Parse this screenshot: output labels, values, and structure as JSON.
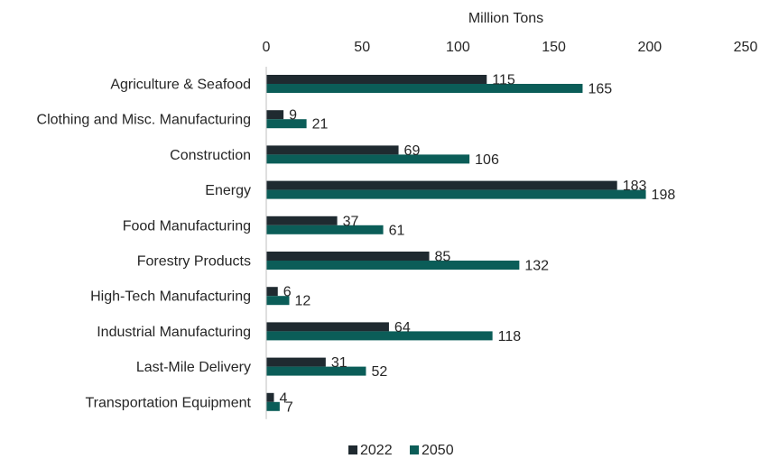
{
  "chart_data": {
    "type": "bar",
    "orientation": "horizontal",
    "xlabel": "Million Tons",
    "xlim": [
      0,
      250
    ],
    "xticks": [
      0,
      50,
      100,
      150,
      200,
      250
    ],
    "grid": false,
    "legend_position": "bottom",
    "categories": [
      "Agriculture & Seafood",
      "Clothing and Misc. Manufacturing",
      "Construction",
      "Energy",
      "Food Manufacturing",
      "Forestry Products",
      "High-Tech Manufacturing",
      "Industrial Manufacturing",
      "Last-Mile Delivery",
      "Transportation Equipment"
    ],
    "series": [
      {
        "name": "2022",
        "color": "#1f2a30",
        "values": [
          115,
          9,
          69,
          183,
          37,
          85,
          6,
          64,
          31,
          4
        ]
      },
      {
        "name": "2050",
        "color": "#0b5d58",
        "values": [
          165,
          21,
          106,
          198,
          61,
          132,
          12,
          118,
          52,
          7
        ]
      }
    ]
  }
}
